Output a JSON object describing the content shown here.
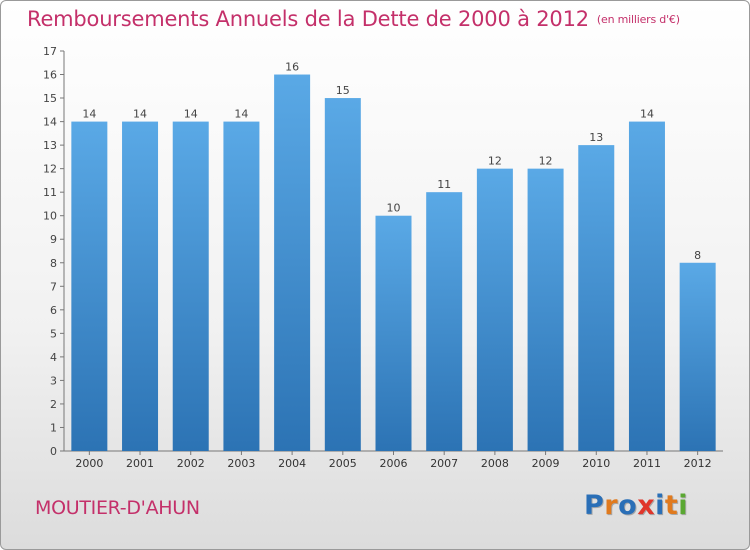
{
  "header": {
    "title": "Remboursements Annuels de la Dette de 2000 à 2012",
    "unit": "(en milliers d'€)"
  },
  "footer": {
    "commune": "MOUTIER-D'AHUN",
    "logo": "Proxiti"
  },
  "colors": {
    "title": "#c4306a",
    "bar_top": "#5aa9e6",
    "bar_bottom": "#2c73b4",
    "logo_letters": [
      "#2a6fb7",
      "#e07a1e",
      "#2a6fb7",
      "#e0362b",
      "#2a6fb7",
      "#e07a1e",
      "#5aa832"
    ]
  },
  "chart_data": {
    "type": "bar",
    "title": "Remboursements Annuels de la Dette de 2000 à 2012",
    "xlabel": "",
    "ylabel": "",
    "categories": [
      "2000",
      "2001",
      "2002",
      "2003",
      "2004",
      "2005",
      "2006",
      "2007",
      "2008",
      "2009",
      "2010",
      "2011",
      "2012"
    ],
    "values": [
      14,
      14,
      14,
      14,
      16,
      15,
      10,
      11,
      12,
      12,
      13,
      14,
      8
    ],
    "y_ticks": [
      "0",
      "1",
      "2",
      "3",
      "4",
      "5",
      "6",
      "7",
      "8",
      "9",
      "10",
      "11",
      "12",
      "13",
      "14",
      "15",
      "16",
      "17"
    ],
    "ylim": [
      0,
      17
    ],
    "grid": false,
    "legend": "none",
    "data_labels": true
  }
}
